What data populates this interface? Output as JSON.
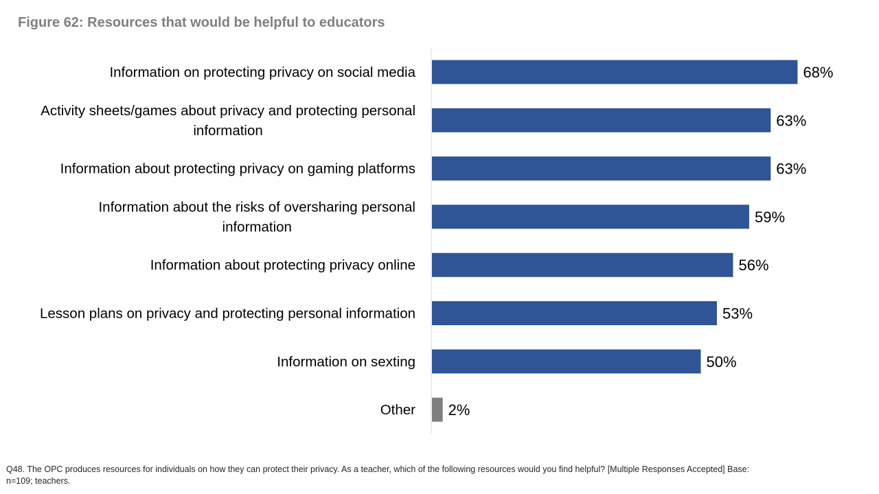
{
  "title": "Figure 62: Resources that would be helpful to educators",
  "footnote": "Q48. The OPC produces resources for individuals on how they can protect their privacy. As a teacher, which of the following resources would you find helpful? [Multiple Responses Accepted] Base: n=109; teachers.",
  "colors": {
    "bar_primary": "#2f5597",
    "bar_other": "#7f7f7f",
    "axis_line": "#d9d9d9",
    "label_text": "#000000"
  },
  "chart_data": {
    "type": "bar",
    "orientation": "horizontal",
    "title": "Figure 62: Resources that would be helpful to educators",
    "xlim": [
      0,
      70
    ],
    "grid": false,
    "legend": "none",
    "unit": "%",
    "categories": [
      [
        "Information on protecting privacy on social media"
      ],
      [
        "Activity sheets/games about privacy and protecting personal",
        "information"
      ],
      [
        "Information about protecting privacy on gaming platforms"
      ],
      [
        "Information about the risks of oversharing personal",
        "information"
      ],
      [
        "Information about protecting privacy online"
      ],
      [
        "Lesson plans on privacy and protecting personal information"
      ],
      [
        "Information on sexting"
      ],
      [
        "Other"
      ]
    ],
    "values": [
      68,
      63,
      63,
      59,
      56,
      53,
      50,
      2
    ],
    "value_labels": [
      "68%",
      "63%",
      "63%",
      "59%",
      "56%",
      "53%",
      "50%",
      "2%"
    ]
  }
}
